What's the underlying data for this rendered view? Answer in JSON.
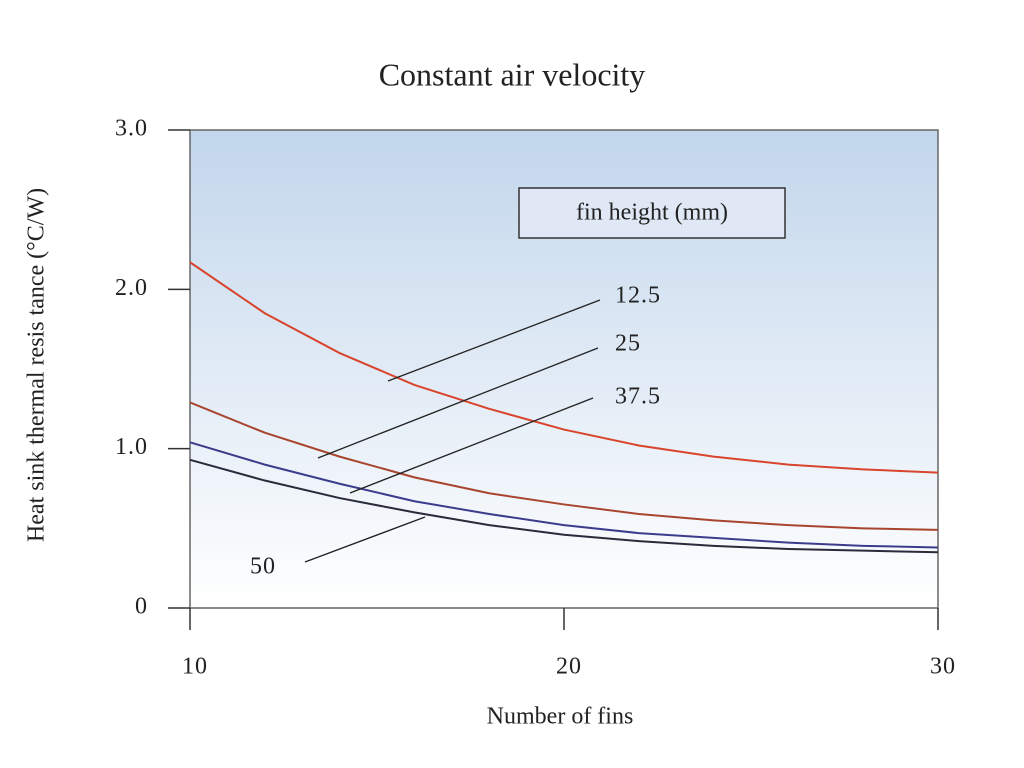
{
  "chart_data": {
    "type": "line",
    "title": "Constant air velocity",
    "x_label": "Number of fins",
    "y_label": "Heat sink thermal resis tance  (°C/W)",
    "legend_title": "fin height (mm)",
    "x": [
      10,
      12,
      14,
      16,
      18,
      20,
      22,
      24,
      26,
      28,
      30
    ],
    "series": [
      {
        "name": "12.5",
        "color": "#d9442c",
        "values": [
          2.17,
          1.85,
          1.6,
          1.4,
          1.25,
          1.12,
          1.02,
          0.95,
          0.9,
          0.87,
          0.85
        ]
      },
      {
        "name": "25",
        "color": "#a8452e",
        "values": [
          1.29,
          1.1,
          0.95,
          0.82,
          0.72,
          0.65,
          0.59,
          0.55,
          0.52,
          0.5,
          0.49
        ]
      },
      {
        "name": "37.5",
        "color": "#3c3c8c",
        "values": [
          1.04,
          0.9,
          0.78,
          0.67,
          0.59,
          0.52,
          0.47,
          0.44,
          0.41,
          0.39,
          0.38
        ]
      },
      {
        "name": "50",
        "color": "#2a2a3a",
        "values": [
          0.93,
          0.8,
          0.69,
          0.6,
          0.52,
          0.46,
          0.42,
          0.39,
          0.37,
          0.36,
          0.35
        ]
      }
    ],
    "xlim": [
      10,
      30
    ],
    "xticks": [
      10,
      20,
      30
    ],
    "ylim": [
      0,
      3
    ],
    "yticks": [
      0,
      {
        "value": 1,
        "label": "1.0"
      },
      {
        "value": 2,
        "label": "2.0"
      },
      {
        "value": 3,
        "label": "3.0"
      }
    ]
  }
}
